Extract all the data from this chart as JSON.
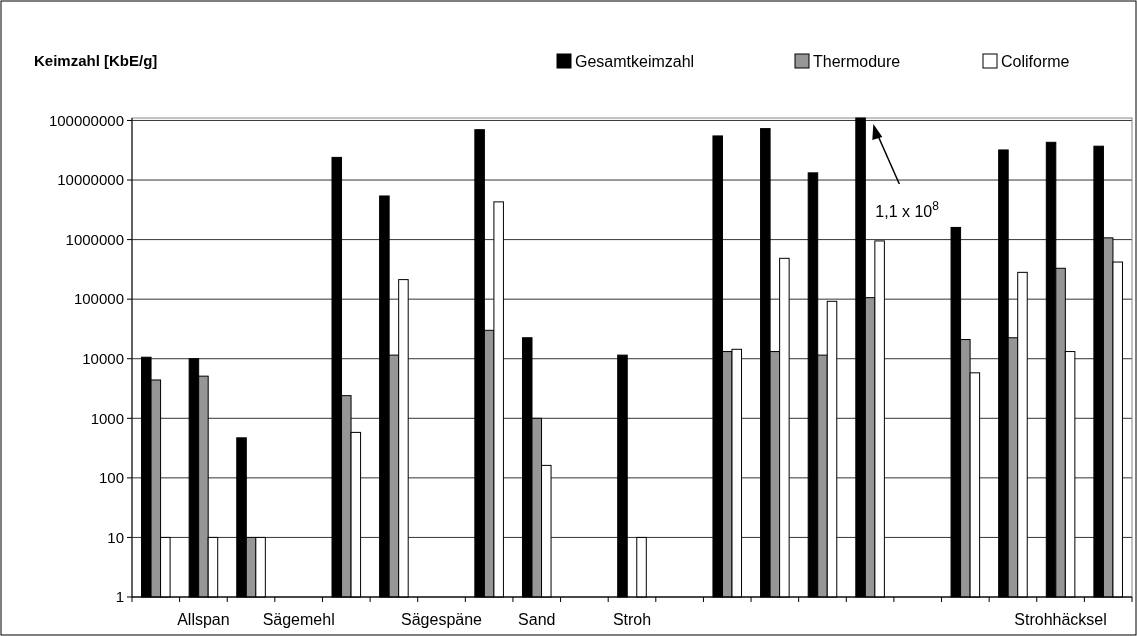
{
  "chart_data": {
    "type": "bar",
    "ylabel": "Keimzahl [KbE/g]",
    "categories": [
      null,
      "Allspan",
      null,
      "Sägemehl",
      null,
      null,
      "Sägespäne",
      null,
      "Sand",
      null,
      "Stroh",
      null,
      null,
      null,
      null,
      null,
      null,
      null,
      null,
      "Strohhäcksel",
      null
    ],
    "series": [
      {
        "name": "Gesamtkeimzahl",
        "color": "#000000",
        "values": [
          10600,
          10000,
          470,
          null,
          24000000,
          5400000,
          null,
          70000000,
          22500,
          null,
          11500,
          null,
          55000000,
          73000000,
          13200000,
          110000000,
          null,
          1600000,
          32000000,
          43000000,
          37000000
        ]
      },
      {
        "name": "Thermodure",
        "color": "#969696",
        "values": [
          4400,
          5100,
          10,
          null,
          2400,
          11500,
          null,
          30000,
          1000,
          null,
          null,
          null,
          13200,
          13200,
          11500,
          106000,
          null,
          21000,
          22500,
          330000,
          1070000
        ]
      },
      {
        "name": "Coliforme",
        "color": "#ffffff",
        "values": [
          10,
          10,
          10,
          null,
          580,
          213000,
          null,
          4300000,
          162,
          null,
          10,
          null,
          14400,
          485000,
          92000,
          950000,
          null,
          5800,
          282000,
          13200,
          420000
        ]
      }
    ],
    "log": true,
    "ylim": [
      1,
      110000000
    ],
    "yticks": [
      1,
      10,
      100,
      1000,
      10000,
      100000,
      1000000,
      10000000,
      100000000
    ],
    "grid": "y",
    "legend": "top right",
    "annotations": [
      "1,1 x 10$^{8}$"
    ]
  }
}
